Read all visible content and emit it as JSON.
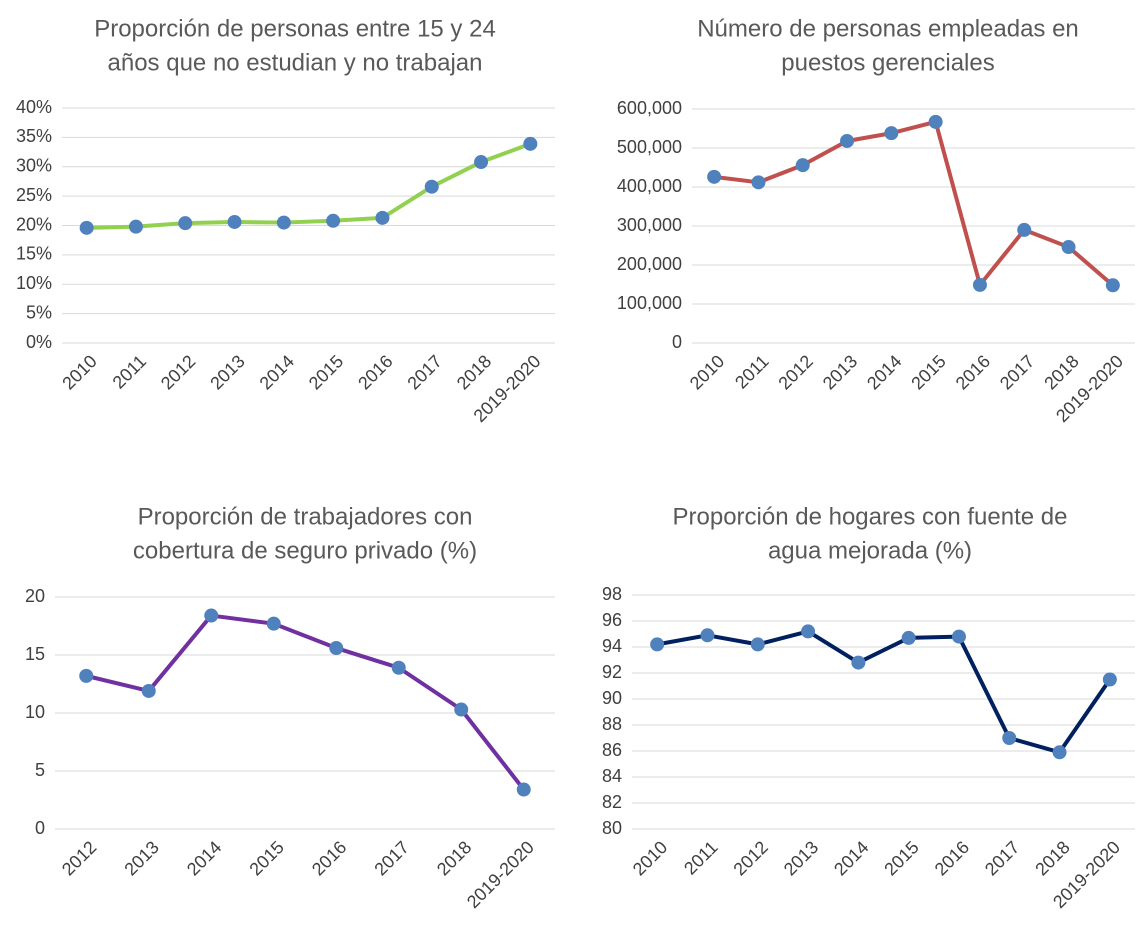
{
  "chart_data": [
    {
      "type": "line",
      "title": [
        "Proporción de personas entre 15 y 24",
        "años que no estudian y no trabajan"
      ],
      "categories": [
        "2010",
        "2011",
        "2012",
        "2013",
        "2014",
        "2015",
        "2016",
        "2017",
        "2018",
        "2019-2020"
      ],
      "series": [
        {
          "color": "#92d050",
          "values": [
            19.6,
            19.8,
            20.4,
            20.6,
            20.5,
            20.8,
            21.3,
            26.6,
            30.8,
            33.9
          ]
        }
      ],
      "ylim": [
        0,
        40
      ],
      "yticks": [
        {
          "value": 0,
          "label": "0%"
        },
        {
          "value": 5,
          "label": "5%"
        },
        {
          "value": 10,
          "label": "10%"
        },
        {
          "value": 15,
          "label": "15%"
        },
        {
          "value": 20,
          "label": "20%"
        },
        {
          "value": 25,
          "label": "25%"
        },
        {
          "value": 30,
          "label": "30%"
        },
        {
          "value": 35,
          "label": "35%"
        },
        {
          "value": 40,
          "label": "40%"
        }
      ],
      "grid": true
    },
    {
      "type": "line",
      "title": [
        "Número de personas empleadas en",
        "puestos gerenciales"
      ],
      "categories": [
        "2010",
        "2011",
        "2012",
        "2013",
        "2014",
        "2015",
        "2016",
        "2017",
        "2018",
        "2019-2020"
      ],
      "series": [
        {
          "color": "#c0504d",
          "values": [
            426000,
            412000,
            456000,
            518000,
            538000,
            567000,
            149000,
            290000,
            246000,
            148000
          ]
        }
      ],
      "ylim": [
        0,
        600000
      ],
      "yticks": [
        0,
        {
          "value": 100000,
          "label": "100,000"
        },
        {
          "value": 200000,
          "label": "200,000"
        },
        {
          "value": 300000,
          "label": "300,000"
        },
        {
          "value": 400000,
          "label": "400,000"
        },
        {
          "value": 500000,
          "label": "500,000"
        },
        {
          "value": 600000,
          "label": "600,000"
        }
      ],
      "grid": true
    },
    {
      "type": "line",
      "title": [
        "Proporción de trabajadores con",
        "cobertura de seguro privado (%)"
      ],
      "categories": [
        "2012",
        "2013",
        "2014",
        "2015",
        "2016",
        "2017",
        "2018",
        "2019-2020"
      ],
      "series": [
        {
          "color": "#7030a0",
          "values": [
            13.2,
            11.9,
            18.4,
            17.7,
            15.6,
            13.9,
            10.3,
            3.4
          ]
        }
      ],
      "ylim": [
        0,
        20
      ],
      "yticks": [
        0,
        5,
        10,
        15,
        20
      ],
      "grid": true
    },
    {
      "type": "line",
      "title": [
        "Proporción de hogares con fuente de",
        "agua mejorada (%)"
      ],
      "categories": [
        "2010",
        "2011",
        "2012",
        "2013",
        "2014",
        "2015",
        "2016",
        "2017",
        "2018",
        "2019-2020"
      ],
      "series": [
        {
          "color": "#002060",
          "values": [
            94.2,
            94.9,
            94.2,
            95.2,
            92.8,
            94.7,
            94.8,
            87.0,
            85.9,
            91.5
          ]
        }
      ],
      "ylim": [
        80,
        98
      ],
      "yticks": [
        80,
        82,
        84,
        86,
        88,
        90,
        92,
        94,
        96,
        98
      ],
      "grid": true
    }
  ]
}
